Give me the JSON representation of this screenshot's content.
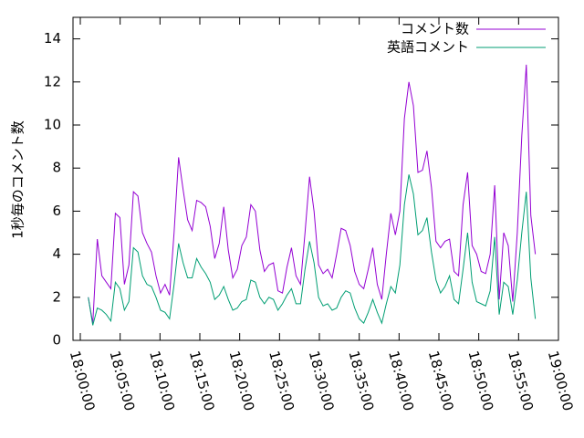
{
  "chart_data": {
    "type": "line",
    "y_label": "1秒毎のコメント数",
    "x": [
      "18:01:00",
      "18:01:34",
      "18:02:08",
      "18:02:42",
      "18:03:16",
      "18:03:50",
      "18:04:24",
      "18:04:58",
      "18:05:32",
      "18:06:06",
      "18:06:40",
      "18:07:14",
      "18:07:48",
      "18:08:22",
      "18:08:56",
      "18:09:30",
      "18:10:04",
      "18:10:38",
      "18:11:12",
      "18:11:46",
      "18:12:20",
      "18:12:54",
      "18:13:28",
      "18:14:02",
      "18:14:36",
      "18:15:10",
      "18:15:44",
      "18:16:18",
      "18:16:52",
      "18:17:26",
      "18:18:00",
      "18:18:34",
      "18:19:08",
      "18:19:42",
      "18:20:16",
      "18:20:50",
      "18:21:24",
      "18:21:58",
      "18:22:32",
      "18:23:06",
      "18:23:40",
      "18:24:14",
      "18:24:48",
      "18:25:22",
      "18:25:56",
      "18:26:30",
      "18:27:04",
      "18:27:38",
      "18:28:12",
      "18:28:46",
      "18:29:20",
      "18:29:54",
      "18:30:28",
      "18:31:02",
      "18:31:36",
      "18:32:10",
      "18:32:44",
      "18:33:18",
      "18:33:52",
      "18:34:26",
      "18:35:00",
      "18:35:34",
      "18:36:08",
      "18:36:42",
      "18:37:16",
      "18:37:50",
      "18:38:24",
      "18:38:58",
      "18:39:32",
      "18:40:06",
      "18:40:40",
      "18:41:14",
      "18:41:48",
      "18:42:22",
      "18:42:56",
      "18:43:30",
      "18:44:04",
      "18:44:38",
      "18:45:12",
      "18:45:46",
      "18:46:20",
      "18:46:54",
      "18:47:28",
      "18:48:02",
      "18:48:36",
      "18:49:10",
      "18:49:44",
      "18:50:18",
      "18:50:52",
      "18:51:26",
      "18:52:00",
      "18:52:34",
      "18:53:08",
      "18:53:42",
      "18:54:16",
      "18:54:50",
      "18:55:24",
      "18:55:58",
      "18:56:32",
      "18:57:06"
    ],
    "series": [
      {
        "name": "コメント数",
        "color": "#9400d3",
        "values": [
          2.0,
          0.8,
          4.7,
          3.0,
          2.7,
          2.4,
          5.9,
          5.7,
          2.6,
          3.5,
          6.9,
          6.7,
          5.0,
          4.5,
          4.1,
          3.0,
          2.2,
          2.6,
          2.1,
          5.0,
          8.5,
          7.0,
          5.6,
          5.1,
          6.5,
          6.4,
          6.2,
          5.3,
          3.8,
          4.5,
          6.2,
          4.2,
          2.9,
          3.3,
          4.4,
          4.8,
          6.3,
          6.0,
          4.2,
          3.2,
          3.5,
          3.6,
          2.3,
          2.2,
          3.4,
          4.3,
          3.0,
          2.6,
          5.0,
          7.6,
          6.0,
          3.5,
          3.1,
          3.3,
          2.9,
          4.0,
          5.2,
          5.1,
          4.4,
          3.2,
          2.6,
          2.4,
          3.3,
          4.3,
          2.6,
          1.9,
          4.0,
          5.9,
          4.9,
          6.0,
          10.3,
          12.0,
          10.9,
          7.8,
          7.9,
          8.8,
          7.1,
          4.6,
          4.3,
          4.6,
          4.7,
          3.2,
          3.0,
          6.3,
          7.8,
          4.4,
          4.0,
          3.2,
          3.1,
          4.0,
          7.2,
          1.9,
          5.0,
          4.4,
          1.8,
          5.0,
          9.5,
          12.8,
          5.8,
          4.0
        ]
      },
      {
        "name": "英語コメント",
        "color": "#009e73",
        "values": [
          2.0,
          0.7,
          1.5,
          1.4,
          1.2,
          0.9,
          2.7,
          2.4,
          1.4,
          1.8,
          4.3,
          4.1,
          3.0,
          2.6,
          2.5,
          2.0,
          1.4,
          1.3,
          1.0,
          2.6,
          4.5,
          3.6,
          2.9,
          2.9,
          3.8,
          3.4,
          3.1,
          2.7,
          1.9,
          2.1,
          2.5,
          1.9,
          1.4,
          1.5,
          1.8,
          1.9,
          2.8,
          2.7,
          2.0,
          1.7,
          2.0,
          1.9,
          1.4,
          1.7,
          2.1,
          2.4,
          1.7,
          1.7,
          3.3,
          4.6,
          3.6,
          2.0,
          1.6,
          1.7,
          1.4,
          1.5,
          2.0,
          2.3,
          2.2,
          1.5,
          1.0,
          0.8,
          1.3,
          1.9,
          1.3,
          0.8,
          1.7,
          2.5,
          2.2,
          3.5,
          6.3,
          7.7,
          6.8,
          4.9,
          5.1,
          5.7,
          4.1,
          2.8,
          2.2,
          2.5,
          3.0,
          1.9,
          1.7,
          3.3,
          5.0,
          2.7,
          1.8,
          1.7,
          1.6,
          2.3,
          4.8,
          1.2,
          2.7,
          2.5,
          1.2,
          2.8,
          5.0,
          6.9,
          2.9,
          1.0
        ]
      }
    ],
    "xlim": [
      "17:59:05",
      "19:00:00"
    ],
    "xticks": [
      "18:00:00",
      "18:05:00",
      "18:10:00",
      "18:15:00",
      "18:20:00",
      "18:25:00",
      "18:30:00",
      "18:35:00",
      "18:40:00",
      "18:45:00",
      "18:50:00",
      "18:55:00",
      "19:00:00"
    ],
    "ylim": [
      0,
      15
    ],
    "yticks": [
      0,
      2,
      4,
      6,
      8,
      10,
      12,
      14
    ],
    "grid": false,
    "legend": "top-right"
  }
}
